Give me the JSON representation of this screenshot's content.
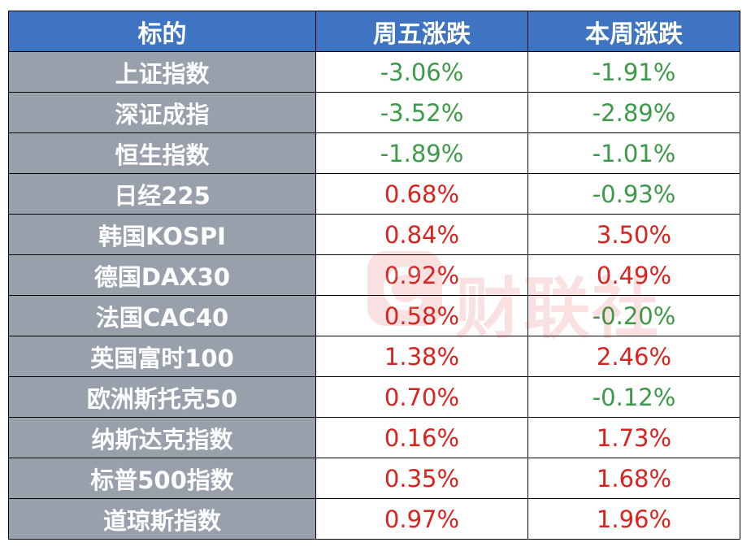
{
  "header": {
    "col_target": "标的",
    "col_friday": "周五涨跌",
    "col_week": "本周涨跌"
  },
  "rows": [
    {
      "name": "上证指数",
      "friday": "-3.06%",
      "week": "-1.91%"
    },
    {
      "name": "深证成指",
      "friday": "-3.52%",
      "week": "-2.89%"
    },
    {
      "name": "恒生指数",
      "friday": "-1.89%",
      "week": "-1.01%"
    },
    {
      "name": "日经225",
      "friday": "0.68%",
      "week": "-0.93%"
    },
    {
      "name": "韩国KOSPI",
      "friday": "0.84%",
      "week": "3.50%"
    },
    {
      "name": "德国DAX30",
      "friday": "0.92%",
      "week": "0.49%"
    },
    {
      "name": "法国CAC40",
      "friday": "0.58%",
      "week": "-0.20%"
    },
    {
      "name": "英国富时100",
      "friday": "1.38%",
      "week": "2.46%"
    },
    {
      "name": "欧洲斯托克50",
      "friday": "0.70%",
      "week": "-0.12%"
    },
    {
      "name": "纳斯达克指数",
      "friday": "0.16%",
      "week": "1.73%"
    },
    {
      "name": "标普500指数",
      "friday": "0.35%",
      "week": "1.68%"
    },
    {
      "name": "道琼斯指数",
      "friday": "0.97%",
      "week": "1.96%"
    }
  ],
  "watermark": {
    "text": "财联社"
  },
  "colors": {
    "header_bg": "#3f74c3",
    "name_bg": "#97a0ab",
    "negative": "#3c9a48",
    "positive": "#d8231f"
  }
}
